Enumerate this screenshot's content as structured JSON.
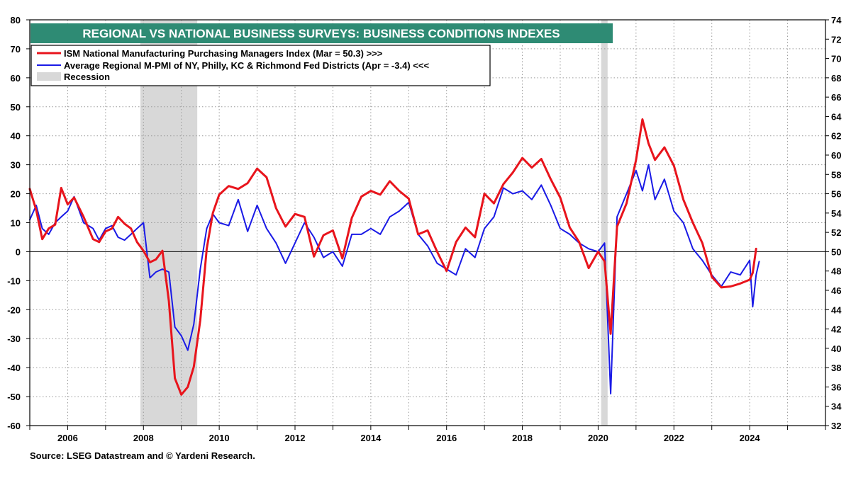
{
  "chart_data": {
    "type": "line",
    "title": "REGIONAL VS NATIONAL BUSINESS SURVEYS: BUSINESS CONDITIONS INDEXES",
    "source": "Source: LSEG Datastream and © Yardeni Research.",
    "left_axis": {
      "ylim": [
        -60,
        80
      ],
      "ticks": [
        80,
        70,
        60,
        50,
        40,
        30,
        20,
        10,
        0,
        -10,
        -20,
        -30,
        -40,
        -50,
        -60
      ]
    },
    "right_axis": {
      "ylim": [
        32,
        74
      ],
      "ticks": [
        74,
        72,
        70,
        68,
        66,
        64,
        62,
        60,
        58,
        56,
        54,
        52,
        50,
        48,
        46,
        44,
        42,
        40,
        38,
        36,
        34,
        32
      ]
    },
    "xlim": [
      2005.0,
      2026.0
    ],
    "x_ticks": [
      "2006",
      "2008",
      "2010",
      "2012",
      "2014",
      "2016",
      "2018",
      "2020",
      "2022",
      "2024"
    ],
    "grid": true,
    "legend_position": "top-left",
    "colors": {
      "ism": "#e8141c",
      "regional": "#1a1ae6",
      "recession": "#d8d8d8",
      "title_bg": "#2e8b74",
      "grid": "#9a9a9a"
    },
    "legend": [
      {
        "label": "ISM National Manufacturing Purchasing Managers Index (Mar = 50.3) >>>",
        "kind": "line",
        "color": "#e8141c"
      },
      {
        "label": "Average Regional M-PMI of NY, Philly, KC & Richmond Fed Districts (Apr = -3.4) <<<",
        "kind": "line",
        "color": "#1a1ae6"
      },
      {
        "label": "Recession",
        "kind": "box",
        "color": "#d8d8d8"
      }
    ],
    "recessions": [
      {
        "start": 2007.92,
        "end": 2009.42
      },
      {
        "start": 2020.08,
        "end": 2020.25
      }
    ],
    "series": [
      {
        "name": "ISM National Manufacturing Purchasing Managers Index (Mar = 50.3)",
        "axis": "right",
        "color": "#e8141c",
        "x": [
          2005.0,
          2005.17,
          2005.33,
          2005.5,
          2005.67,
          2005.83,
          2006.0,
          2006.17,
          2006.42,
          2006.67,
          2006.83,
          2007.0,
          2007.17,
          2007.33,
          2007.5,
          2007.67,
          2007.83,
          2008.0,
          2008.17,
          2008.33,
          2008.5,
          2008.67,
          2008.83,
          2009.0,
          2009.17,
          2009.33,
          2009.5,
          2009.67,
          2009.83,
          2010.0,
          2010.25,
          2010.5,
          2010.75,
          2011.0,
          2011.25,
          2011.5,
          2011.75,
          2012.0,
          2012.25,
          2012.5,
          2012.75,
          2013.0,
          2013.25,
          2013.5,
          2013.75,
          2014.0,
          2014.25,
          2014.5,
          2014.75,
          2015.0,
          2015.25,
          2015.5,
          2015.75,
          2016.0,
          2016.25,
          2016.5,
          2016.75,
          2017.0,
          2017.25,
          2017.5,
          2017.75,
          2018.0,
          2018.25,
          2018.5,
          2018.75,
          2019.0,
          2019.25,
          2019.5,
          2019.75,
          2020.0,
          2020.17,
          2020.33,
          2020.5,
          2020.75,
          2021.0,
          2021.17,
          2021.33,
          2021.5,
          2021.75,
          2022.0,
          2022.25,
          2022.5,
          2022.75,
          2023.0,
          2023.25,
          2023.5,
          2023.75,
          2024.0,
          2024.08,
          2024.17
        ],
        "y": [
          56.5,
          54.3,
          51.3,
          52.4,
          52.8,
          56.6,
          54.9,
          55.6,
          53.6,
          51.3,
          51.0,
          52.1,
          52.4,
          53.6,
          52.9,
          52.4,
          51.0,
          50.1,
          48.9,
          49.2,
          50.1,
          44.9,
          36.9,
          35.2,
          36.0,
          38.1,
          42.9,
          50.3,
          54.0,
          55.9,
          56.8,
          56.5,
          57.1,
          58.6,
          57.7,
          54.5,
          52.6,
          53.9,
          53.6,
          49.5,
          51.7,
          52.2,
          49.3,
          53.5,
          55.7,
          56.3,
          55.9,
          57.3,
          56.3,
          55.5,
          51.8,
          52.2,
          50.0,
          48.0,
          51.0,
          52.5,
          51.5,
          56.0,
          55.0,
          57.0,
          58.2,
          59.7,
          58.7,
          59.6,
          57.5,
          55.6,
          52.5,
          51.0,
          48.3,
          50.0,
          49.0,
          41.5,
          52.6,
          55.0,
          59.5,
          63.7,
          61.2,
          59.5,
          60.8,
          58.9,
          55.4,
          53.0,
          50.9,
          47.4,
          46.3,
          46.4,
          46.7,
          47.1,
          47.8,
          50.3
        ]
      },
      {
        "name": "Average Regional M-PMI of NY, Philly, KC & Richmond Fed Districts (Apr = -3.4)",
        "axis": "left",
        "color": "#1a1ae6",
        "x": [
          2005.0,
          2005.17,
          2005.33,
          2005.5,
          2005.67,
          2005.83,
          2006.0,
          2006.17,
          2006.42,
          2006.67,
          2006.83,
          2007.0,
          2007.17,
          2007.33,
          2007.5,
          2007.67,
          2007.83,
          2008.0,
          2008.17,
          2008.33,
          2008.5,
          2008.67,
          2008.83,
          2009.0,
          2009.17,
          2009.33,
          2009.5,
          2009.67,
          2009.83,
          2010.0,
          2010.25,
          2010.5,
          2010.75,
          2011.0,
          2011.25,
          2011.5,
          2011.75,
          2012.0,
          2012.25,
          2012.5,
          2012.75,
          2013.0,
          2013.25,
          2013.5,
          2013.75,
          2014.0,
          2014.25,
          2014.5,
          2014.75,
          2015.0,
          2015.25,
          2015.5,
          2015.75,
          2016.0,
          2016.25,
          2016.5,
          2016.75,
          2017.0,
          2017.25,
          2017.5,
          2017.75,
          2018.0,
          2018.25,
          2018.5,
          2018.75,
          2019.0,
          2019.25,
          2019.5,
          2019.75,
          2020.0,
          2020.17,
          2020.33,
          2020.5,
          2020.75,
          2021.0,
          2021.17,
          2021.33,
          2021.5,
          2021.75,
          2022.0,
          2022.25,
          2022.5,
          2022.75,
          2023.0,
          2023.25,
          2023.5,
          2023.75,
          2024.0,
          2024.08,
          2024.17,
          2024.25
        ],
        "y": [
          11,
          16,
          8,
          6,
          10,
          12,
          14,
          19,
          10,
          8,
          4,
          8,
          9,
          5,
          4,
          6,
          8,
          10,
          -9,
          -7,
          -6,
          -7,
          -26,
          -29,
          -34,
          -25,
          -6,
          8,
          13,
          10,
          9,
          18,
          7,
          16,
          8,
          3,
          -4,
          3,
          10,
          5,
          -2,
          0,
          -5,
          6,
          6,
          8,
          6,
          12,
          14,
          17,
          6,
          2,
          -4,
          -6,
          -8,
          1,
          -2,
          8,
          12,
          22,
          20,
          21,
          18,
          23,
          16,
          8,
          6,
          3,
          1,
          0,
          3,
          -49,
          12,
          20,
          28,
          21,
          30,
          18,
          25,
          14,
          10,
          1,
          -3,
          -8,
          -12,
          -7,
          -8,
          -3,
          -19,
          -8,
          -3.4
        ]
      }
    ]
  }
}
